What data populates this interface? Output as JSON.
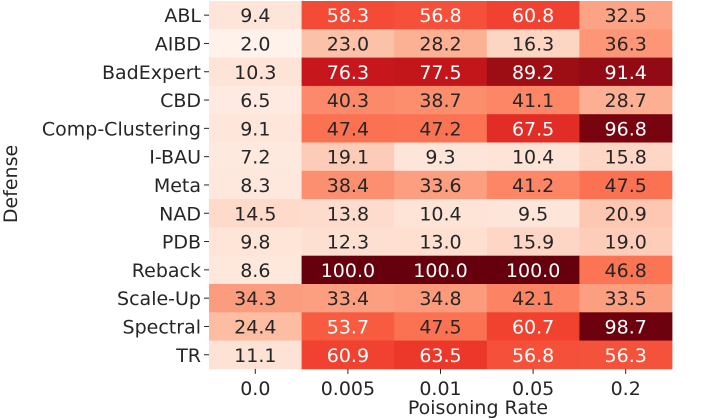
{
  "chart_data": {
    "type": "heatmap",
    "title": "",
    "xlabel": "Poisoning Rate",
    "ylabel": "Defense",
    "x_categories": [
      "0.0",
      "0.005",
      "0.01",
      "0.05",
      "0.2"
    ],
    "y_categories": [
      "ABL",
      "AIBD",
      "BadExpert",
      "CBD",
      "Comp-Clustering",
      "I-BAU",
      "Meta",
      "NAD",
      "PDB",
      "Reback",
      "Scale-Up",
      "Spectral",
      "TR"
    ],
    "values": [
      [
        9.4,
        58.3,
        56.8,
        60.8,
        32.5
      ],
      [
        2.0,
        23.0,
        28.2,
        16.3,
        36.3
      ],
      [
        10.3,
        76.3,
        77.5,
        89.2,
        91.4
      ],
      [
        6.5,
        40.3,
        38.7,
        41.1,
        28.7
      ],
      [
        9.1,
        47.4,
        47.2,
        67.5,
        96.8
      ],
      [
        7.2,
        19.1,
        9.3,
        10.4,
        15.8
      ],
      [
        8.3,
        38.4,
        33.6,
        41.2,
        47.5
      ],
      [
        14.5,
        13.8,
        10.4,
        9.5,
        20.9
      ],
      [
        9.8,
        12.3,
        13.0,
        15.9,
        19.0
      ],
      [
        8.6,
        100.0,
        100.0,
        100.0,
        46.8
      ],
      [
        34.3,
        33.4,
        34.8,
        42.1,
        33.5
      ],
      [
        24.4,
        53.7,
        47.5,
        60.7,
        98.7
      ],
      [
        11.1,
        60.9,
        63.5,
        56.8,
        56.3
      ]
    ],
    "value_range": [
      0,
      100
    ],
    "colormap": "Reds",
    "colors": {
      "stops": [
        "#fff5f0",
        "#fee0d2",
        "#fcbba1",
        "#fc9272",
        "#fb6a4a",
        "#ef3b2c",
        "#cb181d",
        "#a50f15",
        "#67000d"
      ],
      "dark_text": "#262626",
      "light_text": "#ffffff"
    }
  }
}
